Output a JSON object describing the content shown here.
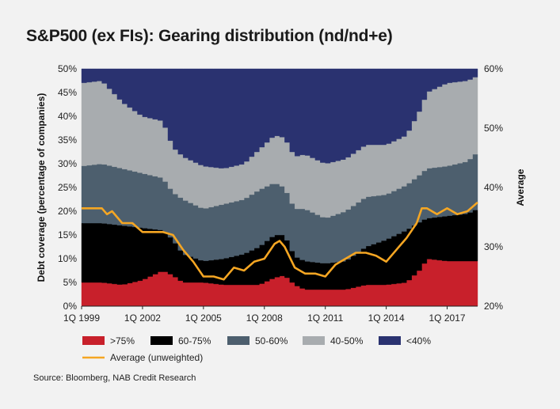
{
  "title": "S&P500 (ex FIs): Gearing distribution (nd/nd+e)",
  "source": "Source: Bloomberg, NAB Credit Research",
  "colors": {
    "gt75": "#c8202b",
    "p60_75": "#000000",
    "p50_60": "#4d5f6e",
    "p40_50": "#a8acaf",
    "lt40": "#2a3270",
    "average": "#f5a623",
    "panel_bg": "#f2f2f2",
    "plot_bg": "#ffffff"
  },
  "chart_data": {
    "type": "area",
    "title": "S&P500 (ex FIs): Gearing distribution (nd/nd+e)",
    "ylabel": "Debt coverage (percentage of companies)",
    "y2label": "Average",
    "xlabel": "",
    "x_tick_labels": [
      "1Q 1999",
      "1Q 2002",
      "1Q 2005",
      "1Q 2008",
      "1Q 2011",
      "1Q 2014",
      "1Q 2017"
    ],
    "x_tick_years": [
      1999,
      2002,
      2005,
      2008,
      2011,
      2014,
      2017
    ],
    "x_range": [
      1999.0,
      2018.5
    ],
    "ylim": [
      0,
      50
    ],
    "y_tick_labels": [
      "0%",
      "5%",
      "10%",
      "15%",
      "20%",
      "25%",
      "30%",
      "35%",
      "40%",
      "45%",
      "50%"
    ],
    "y2lim": [
      20,
      60
    ],
    "y2_tick_labels": [
      "20%",
      "30%",
      "40%",
      "50%",
      "60%"
    ],
    "legend_position": "bottom",
    "legend": [
      ">75%",
      "60-75%",
      "50-60%",
      "40-50%",
      "<40%",
      "Average (unweighted)"
    ],
    "anchors_x": [
      1999.0,
      2000.0,
      2001.0,
      2002.0,
      2003.0,
      2003.5,
      2004.0,
      2005.0,
      2006.0,
      2007.0,
      2007.75,
      2008.5,
      2009.0,
      2009.5,
      2010.0,
      2011.0,
      2012.0,
      2013.0,
      2014.0,
      2015.0,
      2015.75,
      2016.0,
      2017.0,
      2018.0,
      2018.5
    ],
    "series": [
      {
        "name": ">75%",
        "key": "gt75",
        "values": [
          5.0,
          5.0,
          4.5,
          5.5,
          7.5,
          6.5,
          5.0,
          5.0,
          4.5,
          4.5,
          4.5,
          6.0,
          6.5,
          4.5,
          3.5,
          3.5,
          3.5,
          4.5,
          4.5,
          5.0,
          8.0,
          10.0,
          9.5,
          9.5,
          9.5
        ]
      },
      {
        "name": "60-75%",
        "key": "p60_75",
        "values": [
          12.5,
          12.5,
          12.5,
          11.0,
          8.5,
          7.5,
          6.0,
          4.5,
          5.5,
          6.5,
          8.0,
          9.0,
          8.5,
          6.0,
          6.0,
          5.5,
          6.0,
          8.0,
          9.5,
          11.0,
          10.0,
          8.5,
          9.5,
          10.0,
          11.0
        ]
      },
      {
        "name": "50-60%",
        "key": "p50_60",
        "values": [
          12.0,
          12.5,
          12.0,
          11.5,
          11.0,
          10.0,
          11.5,
          11.0,
          11.5,
          11.5,
          12.0,
          11.0,
          10.0,
          10.0,
          11.0,
          9.5,
          10.5,
          10.5,
          9.5,
          9.5,
          10.0,
          10.5,
          10.5,
          11.0,
          12.0
        ]
      },
      {
        "name": "40-50%",
        "key": "p40_50",
        "values": [
          17.5,
          17.5,
          14.0,
          12.0,
          12.0,
          9.5,
          9.0,
          9.0,
          7.5,
          7.5,
          8.5,
          10.0,
          10.5,
          11.0,
          11.5,
          11.5,
          11.0,
          11.0,
          10.5,
          10.5,
          14.0,
          16.0,
          17.5,
          17.0,
          16.0
        ]
      },
      {
        "name": "<40%",
        "key": "lt40",
        "values": [
          3.0,
          2.5,
          7.0,
          10.0,
          11.0,
          16.5,
          18.5,
          20.5,
          21.0,
          20.0,
          17.0,
          14.0,
          14.5,
          18.5,
          18.0,
          20.0,
          19.0,
          16.0,
          16.0,
          14.0,
          8.0,
          5.0,
          3.0,
          2.5,
          1.5
        ]
      }
    ],
    "average": {
      "name": "Average (unweighted)",
      "axis": "y2",
      "x": [
        1999.0,
        1999.5,
        2000.0,
        2000.25,
        2000.5,
        2001.0,
        2001.5,
        2002.0,
        2002.5,
        2003.0,
        2003.5,
        2004.0,
        2004.5,
        2005.0,
        2005.5,
        2006.0,
        2006.5,
        2007.0,
        2007.5,
        2008.0,
        2008.5,
        2008.75,
        2009.0,
        2009.5,
        2010.0,
        2010.5,
        2011.0,
        2011.5,
        2012.0,
        2012.5,
        2013.0,
        2013.5,
        2014.0,
        2014.5,
        2015.0,
        2015.5,
        2015.75,
        2016.0,
        2016.5,
        2017.0,
        2017.5,
        2018.0,
        2018.5
      ],
      "values": [
        36.5,
        36.5,
        36.5,
        35.5,
        36.0,
        34.0,
        34.0,
        32.5,
        32.5,
        32.5,
        32.0,
        29.5,
        27.5,
        25.0,
        25.0,
        24.5,
        26.5,
        26.0,
        27.5,
        28.0,
        30.5,
        31.0,
        30.0,
        26.5,
        25.5,
        25.5,
        25.0,
        27.0,
        28.0,
        29.0,
        29.0,
        28.5,
        27.5,
        29.5,
        31.5,
        34.0,
        36.5,
        36.5,
        35.5,
        36.5,
        35.5,
        36.0,
        37.5
      ]
    }
  }
}
